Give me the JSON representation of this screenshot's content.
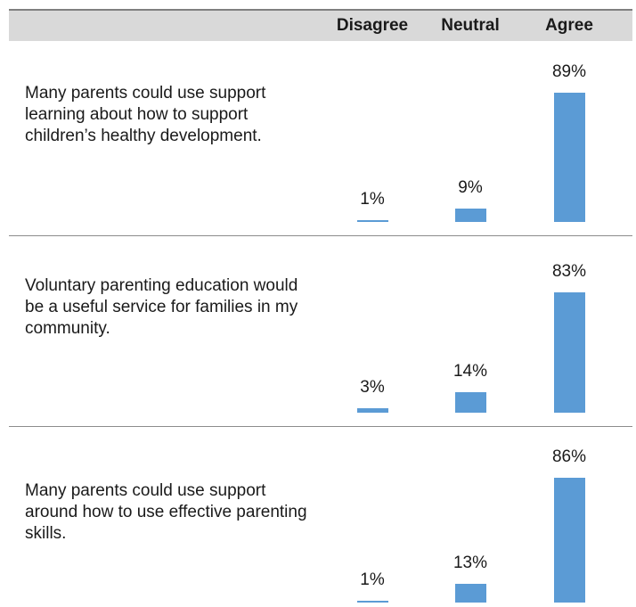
{
  "chart_data": {
    "type": "bar",
    "columns": [
      "Disagree",
      "Neutral",
      "Agree"
    ],
    "colors": {
      "bar": "#5b9bd5",
      "header": "#d9d9d9"
    },
    "ylim": [
      0,
      100
    ],
    "rows": [
      {
        "statement": "Many parents could use support learning about how to support children’s healthy development.",
        "values": [
          1,
          9,
          89
        ],
        "labels": [
          "1%",
          "9%",
          "89%"
        ]
      },
      {
        "statement": "Voluntary parenting education would be a useful service for families in my community.",
        "values": [
          3,
          14,
          83
        ],
        "labels": [
          "3%",
          "14%",
          "83%"
        ]
      },
      {
        "statement": "Many parents could use support around how to use effective parenting skills.",
        "values": [
          1,
          13,
          86
        ],
        "labels": [
          "1%",
          "13%",
          "86%"
        ]
      }
    ]
  }
}
